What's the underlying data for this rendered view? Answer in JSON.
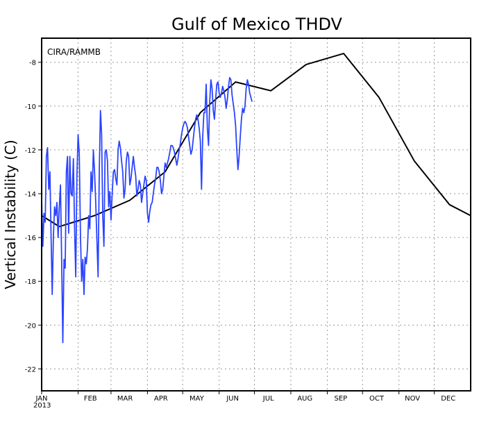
{
  "chart_data": {
    "type": "line",
    "title": "Gulf of Mexico THDV",
    "ylabel": "Vertical Instability (C)",
    "xlabel": "",
    "credit": "CIRA/RAMMB",
    "year_label": "2013",
    "ylim": [
      -23,
      -6.9
    ],
    "yticks": [
      -22,
      -20,
      -18,
      -16,
      -14,
      -12,
      -10,
      -8
    ],
    "ytick_labels": [
      "-22",
      "-20",
      "-18",
      "-16",
      "-14",
      "-12",
      "-10",
      "-8"
    ],
    "x_unit": "day of year",
    "xlim": [
      1,
      366
    ],
    "month_ticks": [
      {
        "label": "JAN",
        "day": 1
      },
      {
        "label": "FEB",
        "day": 32
      },
      {
        "label": "MAR",
        "day": 60
      },
      {
        "label": "APR",
        "day": 91
      },
      {
        "label": "MAY",
        "day": 121
      },
      {
        "label": "JUN",
        "day": 152
      },
      {
        "label": "JUL",
        "day": 182
      },
      {
        "label": "AUG",
        "day": 213
      },
      {
        "label": "SEP",
        "day": 244
      },
      {
        "label": "OCT",
        "day": 274
      },
      {
        "label": "NOV",
        "day": 305
      },
      {
        "label": "DEC",
        "day": 335
      }
    ],
    "grid": true,
    "series": [
      {
        "color": "#000000",
        "x": [
          1,
          16,
          46,
          76,
          106,
          136,
          166,
          196,
          226,
          258,
          288,
          318,
          348,
          366
        ],
        "y": [
          -15.0,
          -15.5,
          -15.0,
          -14.3,
          -13.0,
          -10.3,
          -8.9,
          -9.3,
          -8.1,
          -7.6,
          -9.6,
          -12.5,
          -14.5,
          -15.0
        ]
      },
      {
        "color": "#2a43ff",
        "x": [
          1,
          2,
          3,
          4,
          5,
          6,
          7,
          8,
          9,
          10,
          11,
          12,
          13,
          14,
          15,
          16,
          17,
          18,
          19,
          20,
          21,
          22,
          23,
          24,
          25,
          26,
          27,
          28,
          29,
          30,
          31,
          32,
          33,
          34,
          35,
          36,
          37,
          38,
          39,
          40,
          41,
          42,
          43,
          44,
          45,
          46,
          47,
          48,
          49,
          50,
          51,
          52,
          53,
          54,
          55,
          56,
          57,
          58,
          59,
          60,
          61,
          62,
          63,
          64,
          65,
          66,
          67,
          68,
          69,
          70,
          71,
          72,
          73,
          74,
          75,
          76,
          77,
          78,
          79,
          80,
          81,
          82,
          83,
          84,
          85,
          86,
          87,
          88,
          89,
          90,
          91,
          92,
          93,
          94,
          95,
          96,
          97,
          98,
          99,
          100,
          101,
          102,
          103,
          104,
          105,
          106,
          107,
          108,
          109,
          110,
          111,
          112,
          113,
          114,
          115,
          116,
          117,
          118,
          119,
          120,
          121,
          122,
          123,
          124,
          125,
          126,
          127,
          128,
          129,
          130,
          131,
          132,
          133,
          134,
          135,
          136,
          137,
          138,
          139,
          140,
          141,
          142,
          143,
          144,
          145,
          146,
          147,
          148,
          149,
          150,
          151,
          152,
          153,
          154,
          155,
          156,
          157,
          158,
          159,
          160,
          161,
          162,
          163,
          164,
          165,
          166,
          167,
          168,
          169,
          170,
          171,
          172,
          173,
          174,
          175,
          176,
          177,
          178,
          179,
          180
        ],
        "y": [
          -14.3,
          -16.4,
          -14.9,
          -15.3,
          -12.3,
          -11.9,
          -13.8,
          -13.0,
          -15.8,
          -18.6,
          -16.0,
          -14.6,
          -15.0,
          -14.4,
          -16.0,
          -14.6,
          -13.6,
          -17.0,
          -20.8,
          -17.0,
          -17.4,
          -13.0,
          -12.3,
          -15.8,
          -12.3,
          -14.0,
          -14.1,
          -12.4,
          -15.5,
          -17.8,
          -13.2,
          -11.3,
          -12.2,
          -15.9,
          -18.0,
          -17.0,
          -18.6,
          -16.9,
          -17.2,
          -16.5,
          -15.0,
          -15.6,
          -13.0,
          -13.9,
          -12.0,
          -13.0,
          -14.4,
          -16.1,
          -17.8,
          -13.0,
          -10.2,
          -11.3,
          -15.0,
          -16.4,
          -12.1,
          -12.0,
          -12.5,
          -14.6,
          -13.9,
          -15.2,
          -14.0,
          -13.0,
          -12.9,
          -13.3,
          -13.6,
          -12.0,
          -11.6,
          -11.9,
          -12.5,
          -13.0,
          -14.2,
          -13.8,
          -12.5,
          -12.1,
          -12.3,
          -13.6,
          -13.3,
          -12.8,
          -12.3,
          -12.8,
          -13.2,
          -14.1,
          -13.8,
          -13.4,
          -13.6,
          -14.4,
          -14.0,
          -13.6,
          -13.2,
          -13.4,
          -14.9,
          -15.3,
          -14.8,
          -14.5,
          -14.4,
          -14.0,
          -13.6,
          -13.3,
          -12.8,
          -12.8,
          -13.0,
          -13.4,
          -14.0,
          -13.8,
          -13.2,
          -12.6,
          -12.8,
          -12.6,
          -12.4,
          -12.1,
          -11.8,
          -11.8,
          -11.9,
          -12.1,
          -12.4,
          -12.7,
          -12.4,
          -12.0,
          -11.7,
          -11.3,
          -11.0,
          -10.8,
          -10.7,
          -10.8,
          -11.0,
          -11.4,
          -11.8,
          -12.2,
          -12.0,
          -11.5,
          -11.0,
          -10.6,
          -10.4,
          -10.6,
          -11.0,
          -11.6,
          -13.8,
          -11.4,
          -10.3,
          -10.3,
          -9.0,
          -11.0,
          -11.8,
          -9.8,
          -8.8,
          -9.2,
          -10.2,
          -10.6,
          -9.7,
          -9.0,
          -8.9,
          -9.4,
          -9.6,
          -9.4,
          -9.1,
          -9.3,
          -9.6,
          -10.1,
          -9.7,
          -9.1,
          -8.7,
          -8.8,
          -9.5,
          -9.9,
          -10.3,
          -10.9,
          -12.0,
          -12.9,
          -12.3,
          -11.4,
          -10.6,
          -10.1,
          -10.3,
          -10.0,
          -9.2,
          -8.8,
          -9.0,
          -9.4,
          -9.6,
          -9.8
        ]
      }
    ]
  }
}
